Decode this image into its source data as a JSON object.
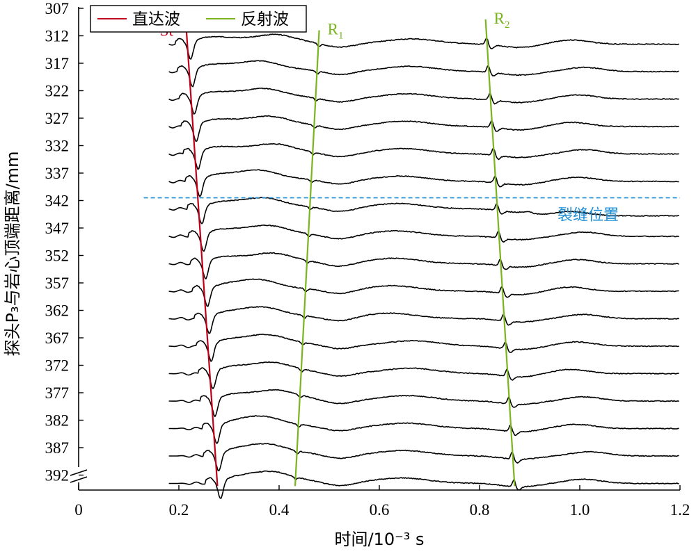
{
  "chart_data": {
    "type": "line",
    "xlabel": "时间/10⁻³ s",
    "ylabel": "探头P₃与岩心顶端距离/mm",
    "xlim": [
      0,
      1.2
    ],
    "x_ticks": [
      "0",
      "0.2",
      "0.4",
      "0.6",
      "0.8",
      "1.0",
      "1.2"
    ],
    "y_ticks": [
      "307",
      "312",
      "317",
      "322",
      "327",
      "332",
      "337",
      "342",
      "347",
      "352",
      "357",
      "362",
      "367",
      "372",
      "377",
      "382",
      "387",
      "392"
    ],
    "trace_distances_mm": [
      312,
      317,
      322,
      327,
      332,
      337,
      342,
      347,
      352,
      357,
      362,
      367,
      372,
      377,
      382,
      387,
      392
    ],
    "trace_onset_time": 0.18,
    "axis_break": true,
    "grid": false,
    "legend": {
      "position": "top-left",
      "entries": [
        {
          "label": "直达波",
          "color": "#c0001a"
        },
        {
          "label": "反射波",
          "color": "#7ab51d"
        }
      ]
    },
    "direct_wave_line": {
      "label": "St",
      "color": "#c0001a",
      "start": {
        "time": 0.215,
        "distance_mm": 311
      },
      "end": {
        "time": 0.277,
        "distance_mm": 394
      }
    },
    "reflected_wave_lines": [
      {
        "label": "R",
        "subscript": "1",
        "color": "#7ab51d",
        "start": {
          "time": 0.48,
          "distance_mm": 311
        },
        "end": {
          "time": 0.432,
          "distance_mm": 394
        }
      },
      {
        "label": "R",
        "subscript": "2",
        "color": "#7ab51d",
        "start": {
          "time": 0.812,
          "distance_mm": 309
        },
        "end": {
          "time": 0.87,
          "distance_mm": 394
        }
      }
    ],
    "crack": {
      "label": "裂缝位置",
      "distance_mm": 341.5,
      "color": "#1f8fd6"
    },
    "series_color": "#000000"
  }
}
